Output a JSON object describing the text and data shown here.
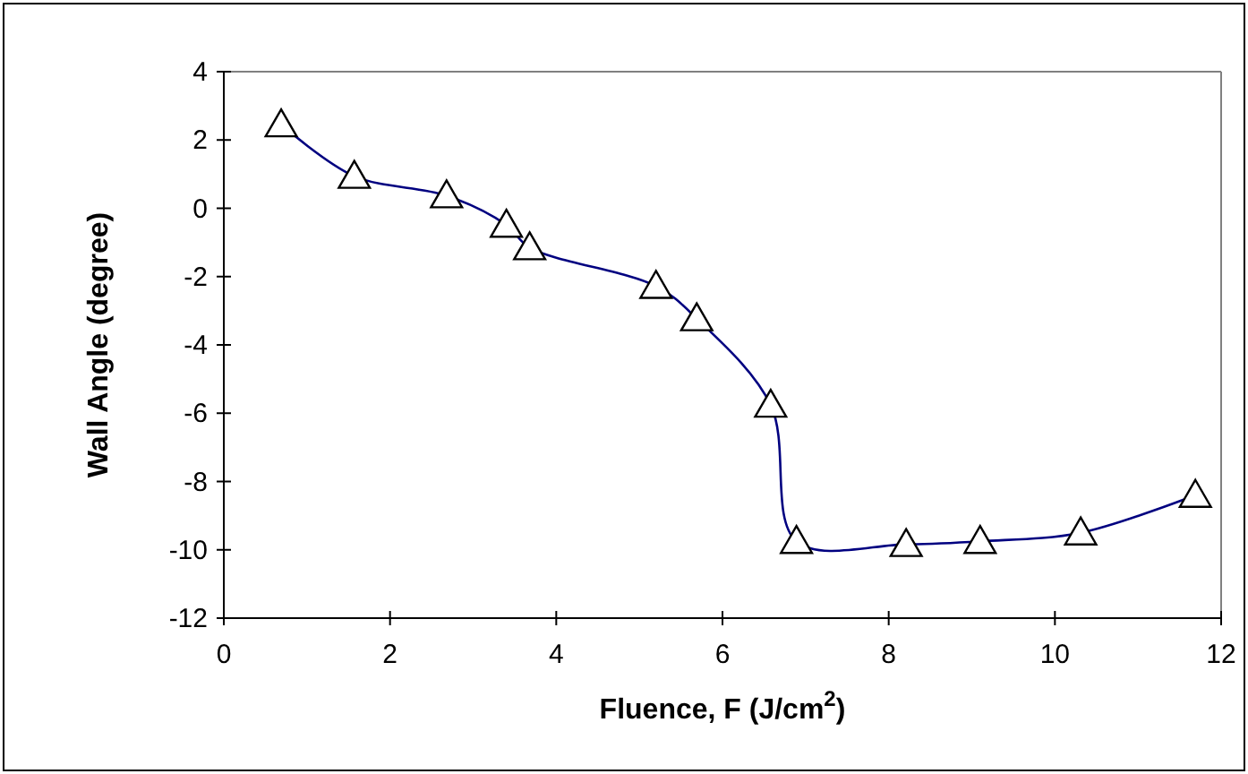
{
  "chart_data": {
    "type": "line",
    "xlabel": "Fluence, F (J/cm$^{2}$)",
    "ylabel": "Wall Angle (degree)",
    "xlim": [
      0,
      12
    ],
    "ylim": [
      -12,
      4
    ],
    "xticks": [
      0,
      2,
      4,
      6,
      8,
      10,
      12
    ],
    "yticks": [
      -12,
      -10,
      -8,
      -6,
      -4,
      -2,
      0,
      2,
      4
    ],
    "grid": false,
    "marker": "triangle",
    "line_style": "solid",
    "series": [
      {
        "color": "#000080",
        "x": [
          0.69,
          1.57,
          2.68,
          3.4,
          3.68,
          5.2,
          5.69,
          6.58,
          6.89,
          8.21,
          9.1,
          10.31,
          11.69
        ],
        "values": [
          2.45,
          0.94,
          0.37,
          -0.49,
          -1.15,
          -2.28,
          -3.23,
          -5.76,
          -9.75,
          -9.84,
          -9.75,
          -9.5,
          -8.4
        ]
      }
    ]
  }
}
